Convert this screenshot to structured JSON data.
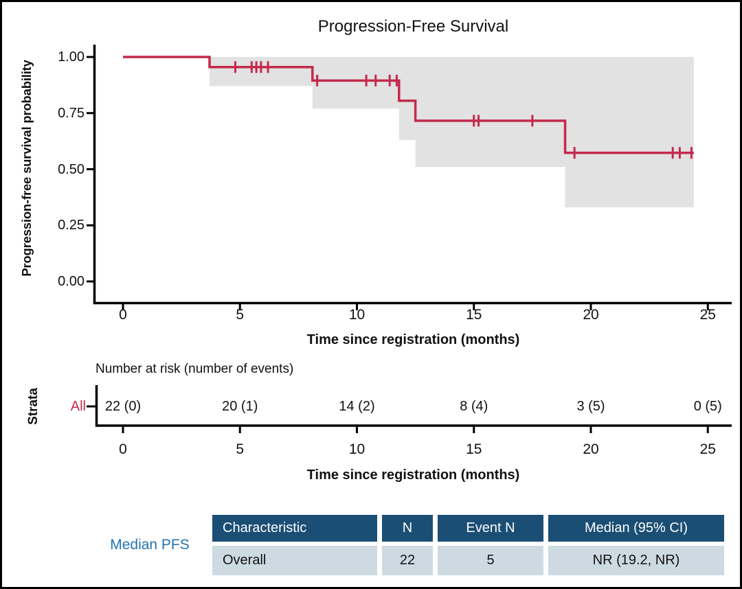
{
  "title": "Progression-Free Survival",
  "colors": {
    "curve": "#C32A4D",
    "ci_band": "#E2E2E2",
    "axis": "#000000",
    "strata_red": "#C32A4D",
    "table_header_bg": "#1B4E74",
    "table_row_bg": "#CDDAE2",
    "table_header_text": "#FFFFFF",
    "caption_blue": "#2374B5"
  },
  "chart_data": {
    "type": "line",
    "variant": "kaplan-meier-step",
    "title": "Progression-Free Survival",
    "xlabel": "Time since registration (months)",
    "ylabel": "Progression-free survival probability",
    "xticks": [
      0,
      5,
      10,
      15,
      20,
      25
    ],
    "yticks": [
      1.0,
      0.75,
      0.5,
      0.25,
      0.0
    ],
    "ytick_labels": [
      "1.00",
      "0.75",
      "0.50",
      "0.25",
      "0.00"
    ],
    "xlim": [
      0,
      26.3
    ],
    "ylim": [
      0,
      1.05
    ],
    "grid": false,
    "legend": "none",
    "series": [
      {
        "name": "All",
        "color": "#C32A4D",
        "step_points": [
          [
            0,
            1.0
          ],
          [
            3.7,
            1.0
          ],
          [
            3.7,
            0.955
          ],
          [
            8.1,
            0.955
          ],
          [
            8.1,
            0.895
          ],
          [
            11.8,
            0.895
          ],
          [
            11.8,
            0.805
          ],
          [
            12.5,
            0.805
          ],
          [
            12.5,
            0.716
          ],
          [
            18.9,
            0.716
          ],
          [
            18.9,
            0.573
          ],
          [
            24.4,
            0.573
          ]
        ],
        "censor_marks": [
          [
            4.8,
            0.955
          ],
          [
            5.5,
            0.955
          ],
          [
            5.7,
            0.955
          ],
          [
            5.9,
            0.955
          ],
          [
            6.2,
            0.955
          ],
          [
            8.3,
            0.895
          ],
          [
            10.4,
            0.895
          ],
          [
            10.8,
            0.895
          ],
          [
            11.4,
            0.895
          ],
          [
            11.7,
            0.895
          ],
          [
            15.0,
            0.716
          ],
          [
            15.2,
            0.716
          ],
          [
            17.5,
            0.716
          ],
          [
            19.3,
            0.573
          ],
          [
            23.5,
            0.573
          ],
          [
            23.8,
            0.573
          ],
          [
            24.3,
            0.573
          ]
        ],
        "ci_band": [
          {
            "t0": 3.7,
            "t1": 8.1,
            "lower": 0.87,
            "upper": 1.0
          },
          {
            "t0": 8.1,
            "t1": 11.8,
            "lower": 0.77,
            "upper": 1.0
          },
          {
            "t0": 11.8,
            "t1": 12.5,
            "lower": 0.63,
            "upper": 1.0
          },
          {
            "t0": 12.5,
            "t1": 18.9,
            "lower": 0.51,
            "upper": 1.0
          },
          {
            "t0": 18.9,
            "t1": 24.4,
            "lower": 0.33,
            "upper": 1.0
          }
        ]
      }
    ]
  },
  "risk_table": {
    "caption": "Number at risk (number of events)",
    "strata_axis_label": "Strata",
    "xlabel": "Time since registration (months)",
    "times": [
      0,
      5,
      10,
      15,
      20,
      25
    ],
    "rows": [
      {
        "strata": "All",
        "counts": [
          "22 (0)",
          "20 (1)",
          "14 (2)",
          "8 (4)",
          "3 (5)",
          "0 (5)"
        ]
      }
    ]
  },
  "summary_table": {
    "caption": "Median PFS",
    "headers": [
      "Characteristic",
      "N",
      "Event N",
      "Median (95% CI)"
    ],
    "rows": [
      [
        "Overall",
        "22",
        "5",
        "NR (19.2, NR)"
      ]
    ]
  }
}
